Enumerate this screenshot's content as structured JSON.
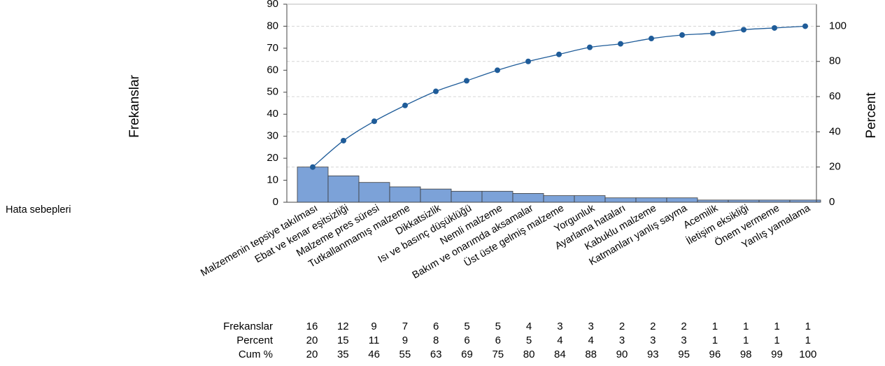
{
  "chart_data": {
    "type": "bar",
    "category_axis_label": "Hata sebepleri",
    "y_left_label": "Frekanslar",
    "y_right_label": "Percent",
    "ylim_left": [
      0,
      90
    ],
    "yticks_left": [
      0,
      10,
      20,
      30,
      40,
      50,
      60,
      70,
      80,
      90
    ],
    "ylim_right": [
      0,
      112.5
    ],
    "yticks_right": [
      0,
      20,
      40,
      60,
      80,
      100
    ],
    "grid": "dashed horizontal",
    "legend": "none",
    "bar_color": "#7CA2D8",
    "line_color": "#1F5C99",
    "categories": [
      "Malzemenin tepsiye takılması",
      "Ebat ve kenar eşitsizliği",
      "Malzeme pres süresi",
      "Tutkallanmamış malzeme",
      "Dikkatsizlik",
      "Isı ve basınç düşüklüğü",
      "Nemli malzeme",
      "Bakım ve onarımda aksamalar",
      "Üst üste gelmiş malzeme",
      "Yorgunluk",
      "Ayarlama hataları",
      "Kabuklu malzeme",
      "Katmanları yanlış sayma",
      "Acemilik",
      "İletişim eksikliği",
      "Önem vermeme",
      "Yanlış yamalama"
    ],
    "series": [
      {
        "name": "Frekanslar",
        "type": "bar",
        "axis": "left",
        "values": [
          16,
          12,
          9,
          7,
          6,
          5,
          5,
          4,
          3,
          3,
          2,
          2,
          2,
          1,
          1,
          1,
          1
        ]
      },
      {
        "type": "line",
        "axis": "right",
        "values": [
          20,
          35,
          46,
          55,
          63,
          69,
          75,
          80,
          84,
          88,
          90,
          93,
          95,
          96,
          98,
          99,
          100
        ]
      }
    ],
    "table": {
      "rows": [
        {
          "label": "Frekanslar",
          "values": [
            "16",
            "12",
            "9",
            "7",
            "6",
            "5",
            "5",
            "4",
            "3",
            "3",
            "2",
            "2",
            "2",
            "1",
            "1",
            "1",
            "1"
          ]
        },
        {
          "label": "Percent",
          "values": [
            "20",
            "15",
            "11",
            "9",
            "8",
            "6",
            "6",
            "5",
            "4",
            "4",
            "3",
            "3",
            "3",
            "1",
            "1",
            "1",
            "1"
          ]
        },
        {
          "label": "Cum %",
          "values": [
            "20",
            "35",
            "46",
            "55",
            "63",
            "69",
            "75",
            "80",
            "84",
            "88",
            "90",
            "93",
            "95",
            "96",
            "98",
            "99",
            "100"
          ]
        }
      ]
    }
  }
}
